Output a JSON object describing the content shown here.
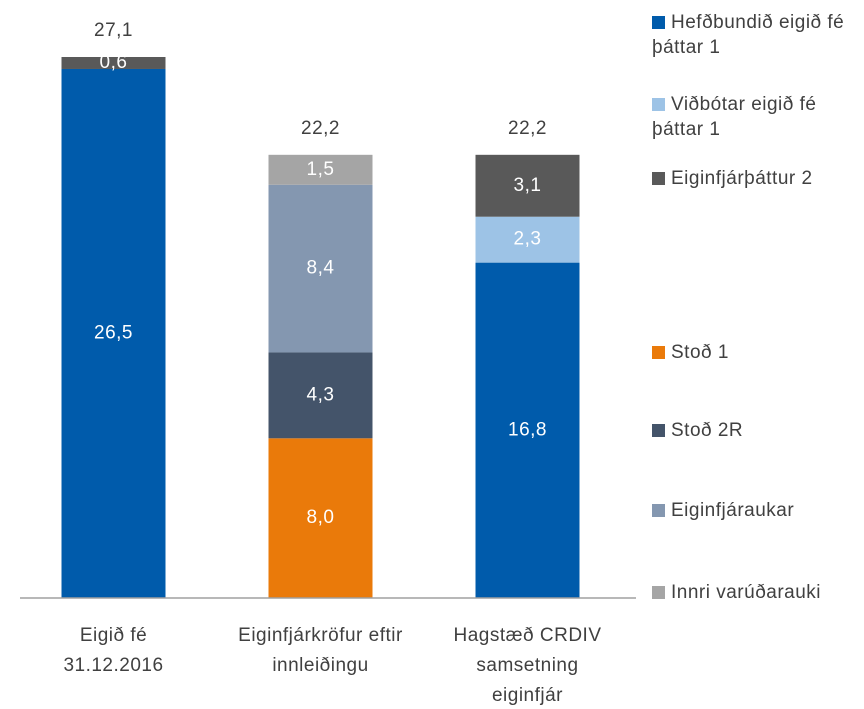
{
  "chart_data": {
    "type": "stacked_bar",
    "categories": [
      [
        "Eigið fé",
        "31.12.2016"
      ],
      [
        "Eiginfjárkröfur eftir",
        "innleiðingu"
      ],
      [
        "Hagstæð CRDIV",
        "samsetning",
        "eiginfjár"
      ]
    ],
    "series": [
      {
        "name": "Hefðbundið eigið fé þáttar 1",
        "color": "#005bab",
        "values": [
          26.5,
          null,
          16.8
        ],
        "value_labels": [
          "26,5",
          null,
          "16,8"
        ]
      },
      {
        "name": "Viðbótar eigið fé þáttar 1",
        "color": "#9dc3e6",
        "values": [
          null,
          null,
          2.3
        ],
        "value_labels": [
          null,
          null,
          "2,3"
        ]
      },
      {
        "name": "Eiginfjárþáttur 2",
        "color": "#595959",
        "values": [
          0.6,
          null,
          3.1
        ],
        "value_labels": [
          "0,6",
          null,
          "3,1"
        ]
      },
      {
        "name": "Stoð 1",
        "color": "#ea7a0a",
        "values": [
          null,
          8.0,
          null
        ],
        "value_labels": [
          null,
          "8,0",
          null
        ]
      },
      {
        "name": "Stoð 2R",
        "color": "#44546a",
        "values": [
          null,
          4.3,
          null
        ],
        "value_labels": [
          null,
          "4,3",
          null
        ]
      },
      {
        "name": "Eiginfjáraukar",
        "color": "#8497b0",
        "values": [
          null,
          8.4,
          null
        ],
        "value_labels": [
          null,
          "8,4",
          null
        ]
      },
      {
        "name": "Innri varúðarauki",
        "color": "#a5a5a5",
        "values": [
          null,
          1.5,
          null
        ],
        "value_labels": [
          null,
          "1,5",
          null
        ]
      }
    ],
    "totals": [
      27.1,
      22.2,
      22.2
    ],
    "total_labels": [
      "27,1",
      "22,2",
      "22,2"
    ],
    "ylim": [
      0,
      27.1
    ]
  }
}
